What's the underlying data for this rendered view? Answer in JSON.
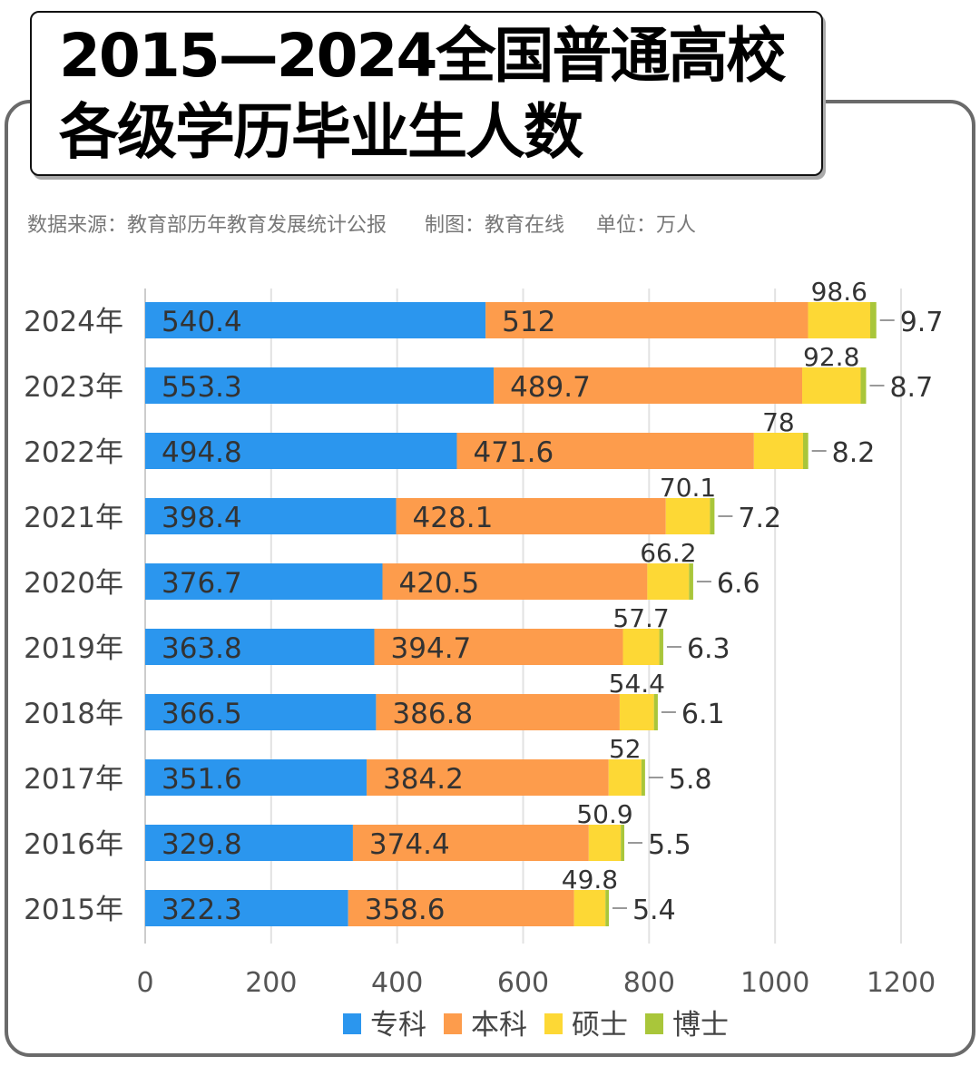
{
  "title_line1": "2015—2024全国普通高校",
  "title_line2": "各级学历毕业生人数",
  "source": "数据来源：教育部历年教育发展统计公报",
  "author": "制图：教育在线",
  "unit": "单位：万人",
  "colors": {
    "专科": "#2b96ee",
    "本科": "#fd9c4c",
    "硕士": "#fdd835",
    "博士": "#a9c63a"
  },
  "chart_data": {
    "type": "bar",
    "orientation": "horizontal",
    "stacked": true,
    "categories": [
      "2024年",
      "2023年",
      "2022年",
      "2021年",
      "2020年",
      "2019年",
      "2018年",
      "2017年",
      "2016年",
      "2015年"
    ],
    "series": [
      {
        "name": "专科",
        "values": [
          540.4,
          553.3,
          494.8,
          398.4,
          376.7,
          363.8,
          366.5,
          351.6,
          329.8,
          322.3
        ]
      },
      {
        "name": "本科",
        "values": [
          512,
          489.7,
          471.6,
          428.1,
          420.5,
          394.7,
          386.8,
          384.2,
          374.4,
          358.6
        ]
      },
      {
        "name": "硕士",
        "values": [
          98.6,
          92.8,
          78,
          70.1,
          66.2,
          57.7,
          54.4,
          52,
          50.9,
          49.8
        ]
      },
      {
        "name": "博士",
        "values": [
          9.7,
          8.7,
          8.2,
          7.2,
          6.6,
          6.3,
          6.1,
          5.8,
          5.5,
          5.4
        ]
      }
    ],
    "xlim": [
      0,
      1200
    ],
    "xticks": [
      "0",
      "200",
      "400",
      "600",
      "800",
      "1000",
      "1200"
    ],
    "grid": true,
    "legend": "bottom"
  }
}
